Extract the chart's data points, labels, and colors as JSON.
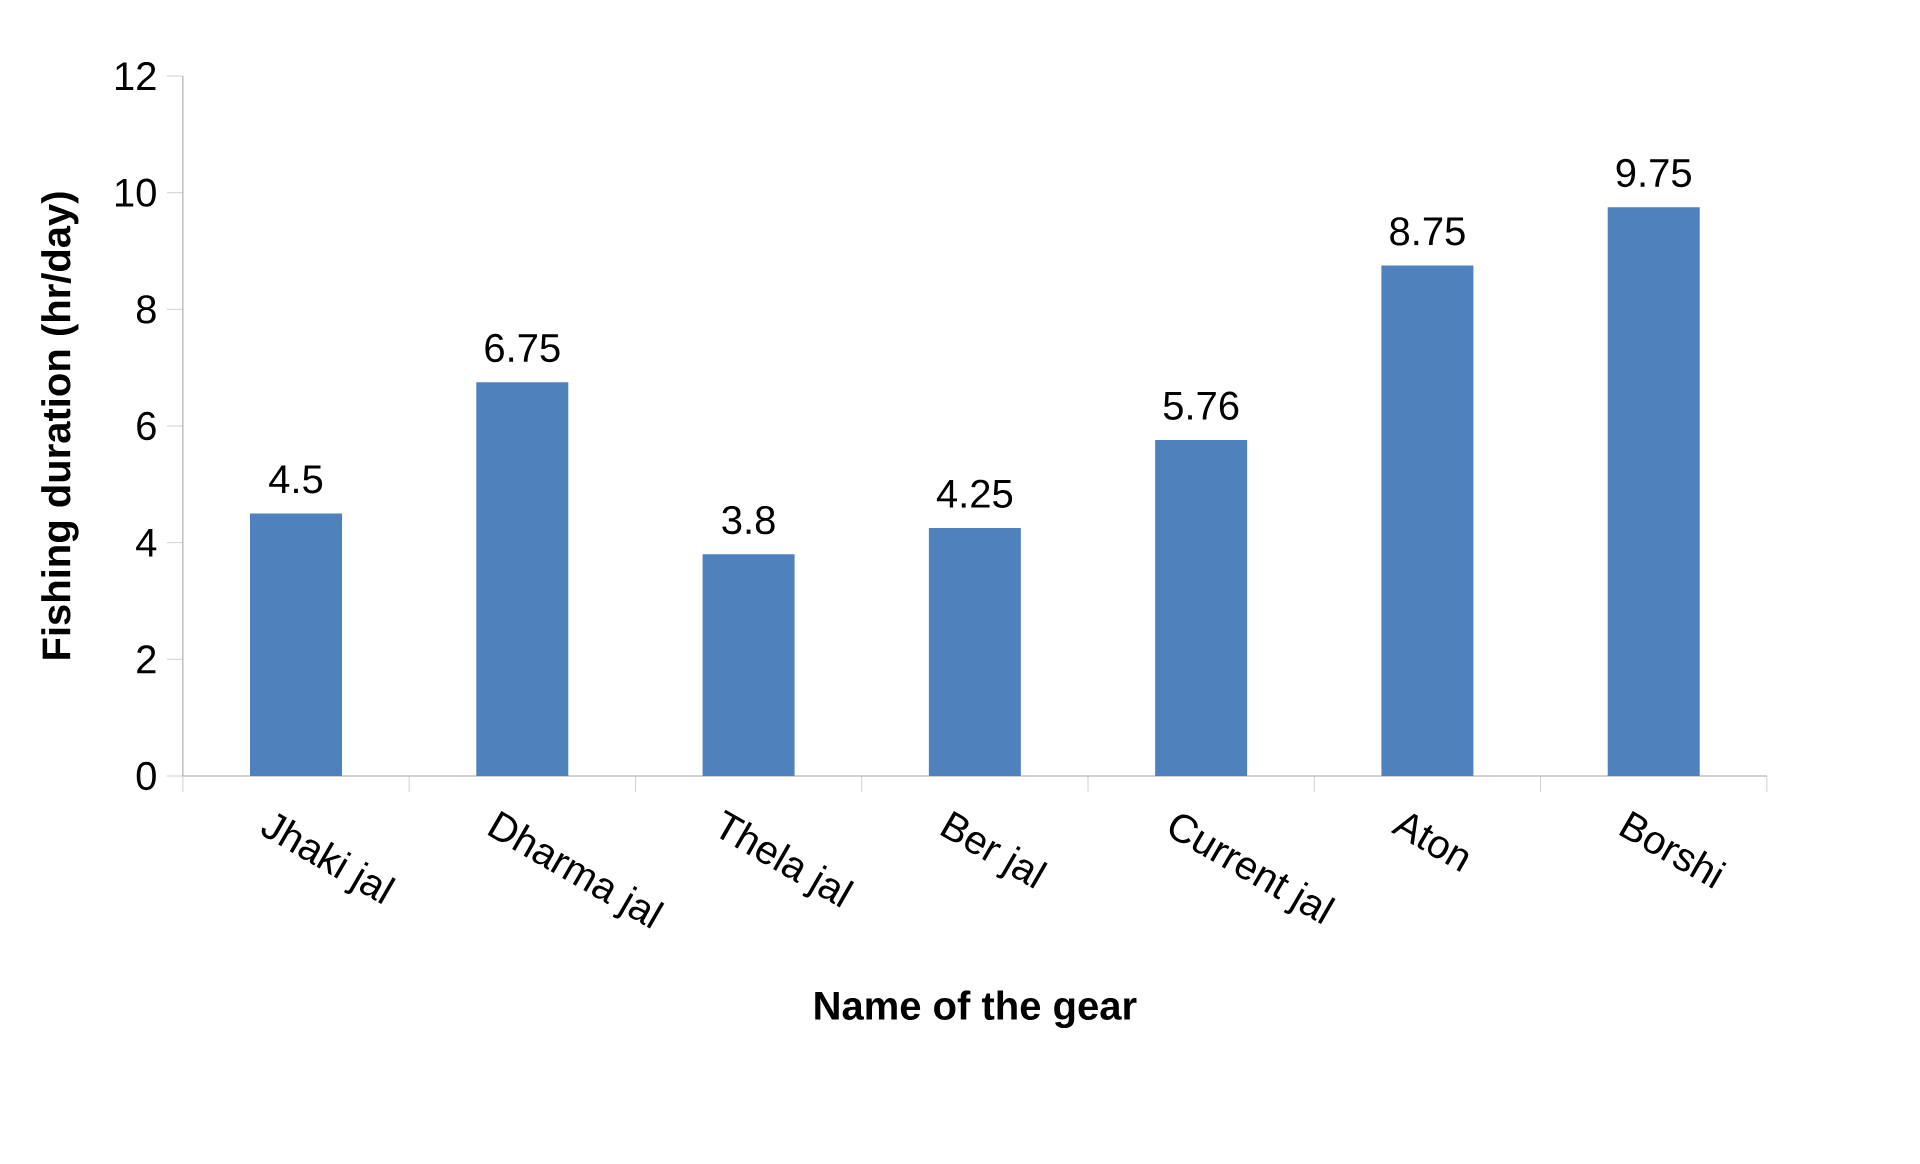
{
  "chart_data": {
    "type": "bar",
    "xlabel": "Name of the gear",
    "ylabel": "Fishing duration (hr/day)",
    "categories": [
      "Jhaki jal",
      "Dharma jal",
      "Thela jal",
      "Ber jal",
      "Current jal",
      "Aton",
      "Borshi"
    ],
    "values": [
      4.5,
      6.75,
      3.8,
      4.25,
      5.76,
      8.75,
      9.75
    ],
    "color": "#4f81bd",
    "ylim": [
      0,
      12
    ],
    "yticks": [
      0,
      2,
      4,
      6,
      8,
      10,
      12
    ],
    "grid": false,
    "data_labels": true
  }
}
